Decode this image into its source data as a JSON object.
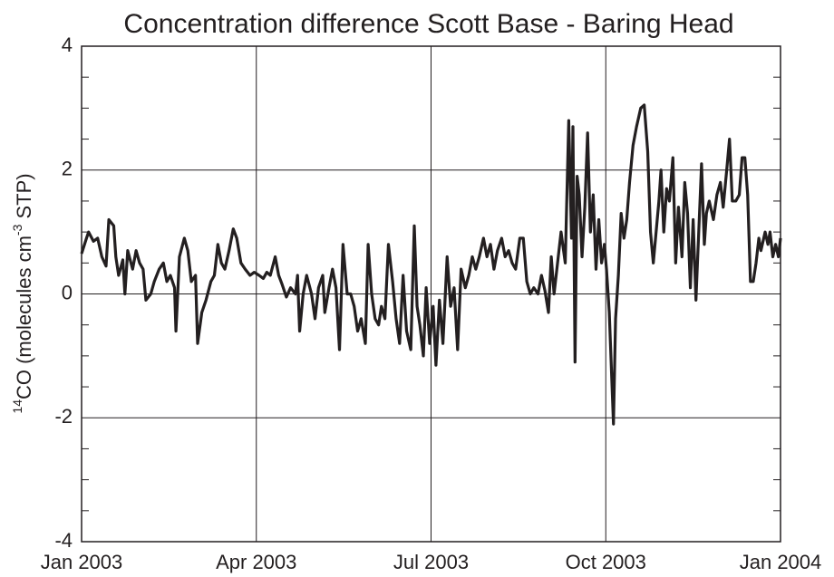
{
  "chart_data": {
    "type": "line",
    "title": "Concentration difference Scott Base - Baring Head",
    "ylabel": [
      "14",
      "CO (molecules cm",
      "-3",
      " STP)"
    ],
    "x": [
      2003,
      2003.007,
      2003.01,
      2003.017,
      2003.023,
      2003.029,
      2003.035,
      2003.039,
      2003.046,
      2003.049,
      2003.053,
      2003.059,
      2003.062,
      2003.066,
      2003.073,
      2003.078,
      2003.083,
      2003.088,
      2003.092,
      2003.099,
      2003.104,
      2003.111,
      2003.117,
      2003.122,
      2003.127,
      2003.133,
      2003.135,
      2003.14,
      2003.147,
      2003.152,
      2003.157,
      2003.163,
      2003.166,
      2003.172,
      2003.178,
      2003.185,
      2003.19,
      2003.195,
      2003.2,
      2003.205,
      2003.211,
      2003.217,
      2003.222,
      2003.228,
      2003.234,
      2003.241,
      2003.247,
      2003.254,
      2003.26,
      2003.265,
      2003.27,
      2003.277,
      2003.282,
      2003.287,
      2003.293,
      2003.299,
      2003.306,
      2003.309,
      2003.312,
      2003.317,
      2003.322,
      2003.329,
      2003.334,
      2003.339,
      2003.345,
      2003.348,
      2003.354,
      2003.359,
      2003.364,
      2003.369,
      2003.374,
      2003.38,
      2003.385,
      2003.39,
      2003.395,
      2003.4,
      2003.406,
      2003.41,
      2003.415,
      2003.42,
      2003.425,
      2003.429,
      2003.434,
      2003.439,
      2003.445,
      2003.45,
      2003.455,
      2003.46,
      2003.465,
      2003.471,
      2003.476,
      2003.48,
      2003.484,
      2003.489,
      2003.493,
      2003.498,
      2003.503,
      2003.507,
      2003.512,
      2003.517,
      2003.523,
      2003.528,
      2003.533,
      2003.538,
      2003.543,
      2003.549,
      2003.554,
      2003.559,
      2003.564,
      2003.569,
      2003.575,
      2003.58,
      2003.585,
      2003.59,
      2003.595,
      2003.601,
      2003.606,
      2003.611,
      2003.616,
      2003.621,
      2003.627,
      2003.632,
      2003.637,
      2003.642,
      2003.647,
      2003.653,
      2003.658,
      2003.663,
      2003.668,
      2003.672,
      2003.676,
      2003.681,
      2003.686,
      2003.692,
      2003.697,
      2003.701,
      2003.703,
      2003.706,
      2003.709,
      2003.712,
      2003.716,
      2003.72,
      2003.724,
      2003.728,
      2003.732,
      2003.736,
      2003.74,
      2003.744,
      2003.748,
      2003.751,
      2003.755,
      2003.761,
      2003.764,
      2003.768,
      2003.772,
      2003.776,
      2003.78,
      2003.784,
      2003.789,
      2003.794,
      2003.8,
      2003.805,
      2003.81,
      2003.814,
      2003.818,
      2003.822,
      2003.826,
      2003.829,
      2003.833,
      2003.837,
      2003.841,
      2003.846,
      2003.85,
      2003.854,
      2003.859,
      2003.863,
      2003.867,
      2003.871,
      2003.875,
      2003.879,
      2003.883,
      2003.887,
      2003.891,
      2003.894,
      2003.898,
      2003.904,
      2003.909,
      2003.914,
      2003.918,
      2003.923,
      2003.927,
      2003.931,
      2003.936,
      2003.941,
      2003.945,
      2003.949,
      2003.953,
      2003.957,
      2003.961,
      2003.965,
      2003.969,
      2003.972,
      2003.978,
      2003.982,
      2003.985,
      2003.989,
      2003.993,
      2003.997,
      2004
    ],
    "series": [
      {
        "color": "#231f20",
        "values": [
          0.65,
          0.9,
          1.0,
          0.85,
          0.9,
          0.6,
          0.45,
          1.2,
          1.1,
          0.6,
          0.3,
          0.55,
          0.0,
          0.7,
          0.4,
          0.7,
          0.5,
          0.4,
          -0.1,
          0.0,
          0.2,
          0.4,
          0.5,
          0.2,
          0.3,
          0.1,
          -0.6,
          0.6,
          0.9,
          0.7,
          0.2,
          0.3,
          -0.8,
          -0.3,
          -0.1,
          0.2,
          0.3,
          0.8,
          0.5,
          0.4,
          0.7,
          1.05,
          0.9,
          0.5,
          0.4,
          0.3,
          0.35,
          0.3,
          0.25,
          0.35,
          0.3,
          0.6,
          0.3,
          0.15,
          -0.05,
          0.1,
          0.0,
          0.3,
          -0.6,
          0.0,
          0.3,
          0.0,
          -0.4,
          0.1,
          0.3,
          -0.3,
          0.1,
          0.4,
          0.1,
          -0.9,
          0.8,
          0.0,
          0.0,
          -0.2,
          -0.6,
          -0.4,
          -0.8,
          0.8,
          0.0,
          -0.4,
          -0.5,
          -0.2,
          -0.4,
          0.8,
          0.2,
          -0.4,
          -0.8,
          0.3,
          -0.6,
          -0.9,
          1.1,
          -0.2,
          -0.5,
          -1.0,
          0.1,
          -0.8,
          -0.2,
          -1.15,
          -0.1,
          -0.8,
          0.6,
          -0.2,
          0.1,
          -0.9,
          0.4,
          0.1,
          0.3,
          0.6,
          0.4,
          0.6,
          0.9,
          0.6,
          0.8,
          0.4,
          0.7,
          0.9,
          0.6,
          0.7,
          0.5,
          0.4,
          0.9,
          0.9,
          0.2,
          0.0,
          0.1,
          0.0,
          0.3,
          0.05,
          -0.3,
          0.6,
          0.0,
          0.5,
          1.0,
          0.5,
          2.8,
          0.9,
          2.7,
          -1.1,
          1.9,
          1.6,
          0.6,
          1.4,
          2.6,
          1.0,
          1.6,
          0.4,
          1.2,
          0.5,
          0.8,
          0.4,
          -0.3,
          -2.1,
          -0.4,
          0.3,
          1.3,
          0.9,
          1.2,
          1.8,
          2.4,
          2.7,
          3.0,
          3.05,
          2.3,
          1.0,
          0.5,
          1.0,
          1.5,
          2.0,
          1.0,
          1.7,
          1.5,
          2.2,
          0.5,
          1.4,
          0.6,
          1.8,
          1.3,
          0.1,
          1.2,
          -0.1,
          1.0,
          2.1,
          0.8,
          1.3,
          1.5,
          1.2,
          1.6,
          1.8,
          1.4,
          2.0,
          2.5,
          1.5,
          1.5,
          1.6,
          2.2,
          2.2,
          1.6,
          0.2,
          0.2,
          0.5,
          0.9,
          0.7,
          1.0,
          0.8,
          1.0,
          0.6,
          0.8,
          0.6,
          0.9
        ]
      }
    ],
    "xlim": [
      2003,
      2004
    ],
    "xticks": [
      {
        "value": 2003,
        "label": "Jan 2003"
      },
      {
        "value": 2003.25,
        "label": "Apr 2003"
      },
      {
        "value": 2003.5,
        "label": "Jul 2003"
      },
      {
        "value": 2003.75,
        "label": "Oct 2003"
      },
      {
        "value": 2004,
        "label": "Jan 2004"
      }
    ],
    "ylim": [
      -4,
      4
    ],
    "yticks": [
      -4,
      -2,
      0,
      2,
      4
    ],
    "yminorticks": [
      -3.5,
      -3,
      -2.5,
      -1.5,
      -1,
      -0.5,
      0.5,
      1,
      1.5,
      2.5,
      3,
      3.5
    ],
    "grid": true
  }
}
